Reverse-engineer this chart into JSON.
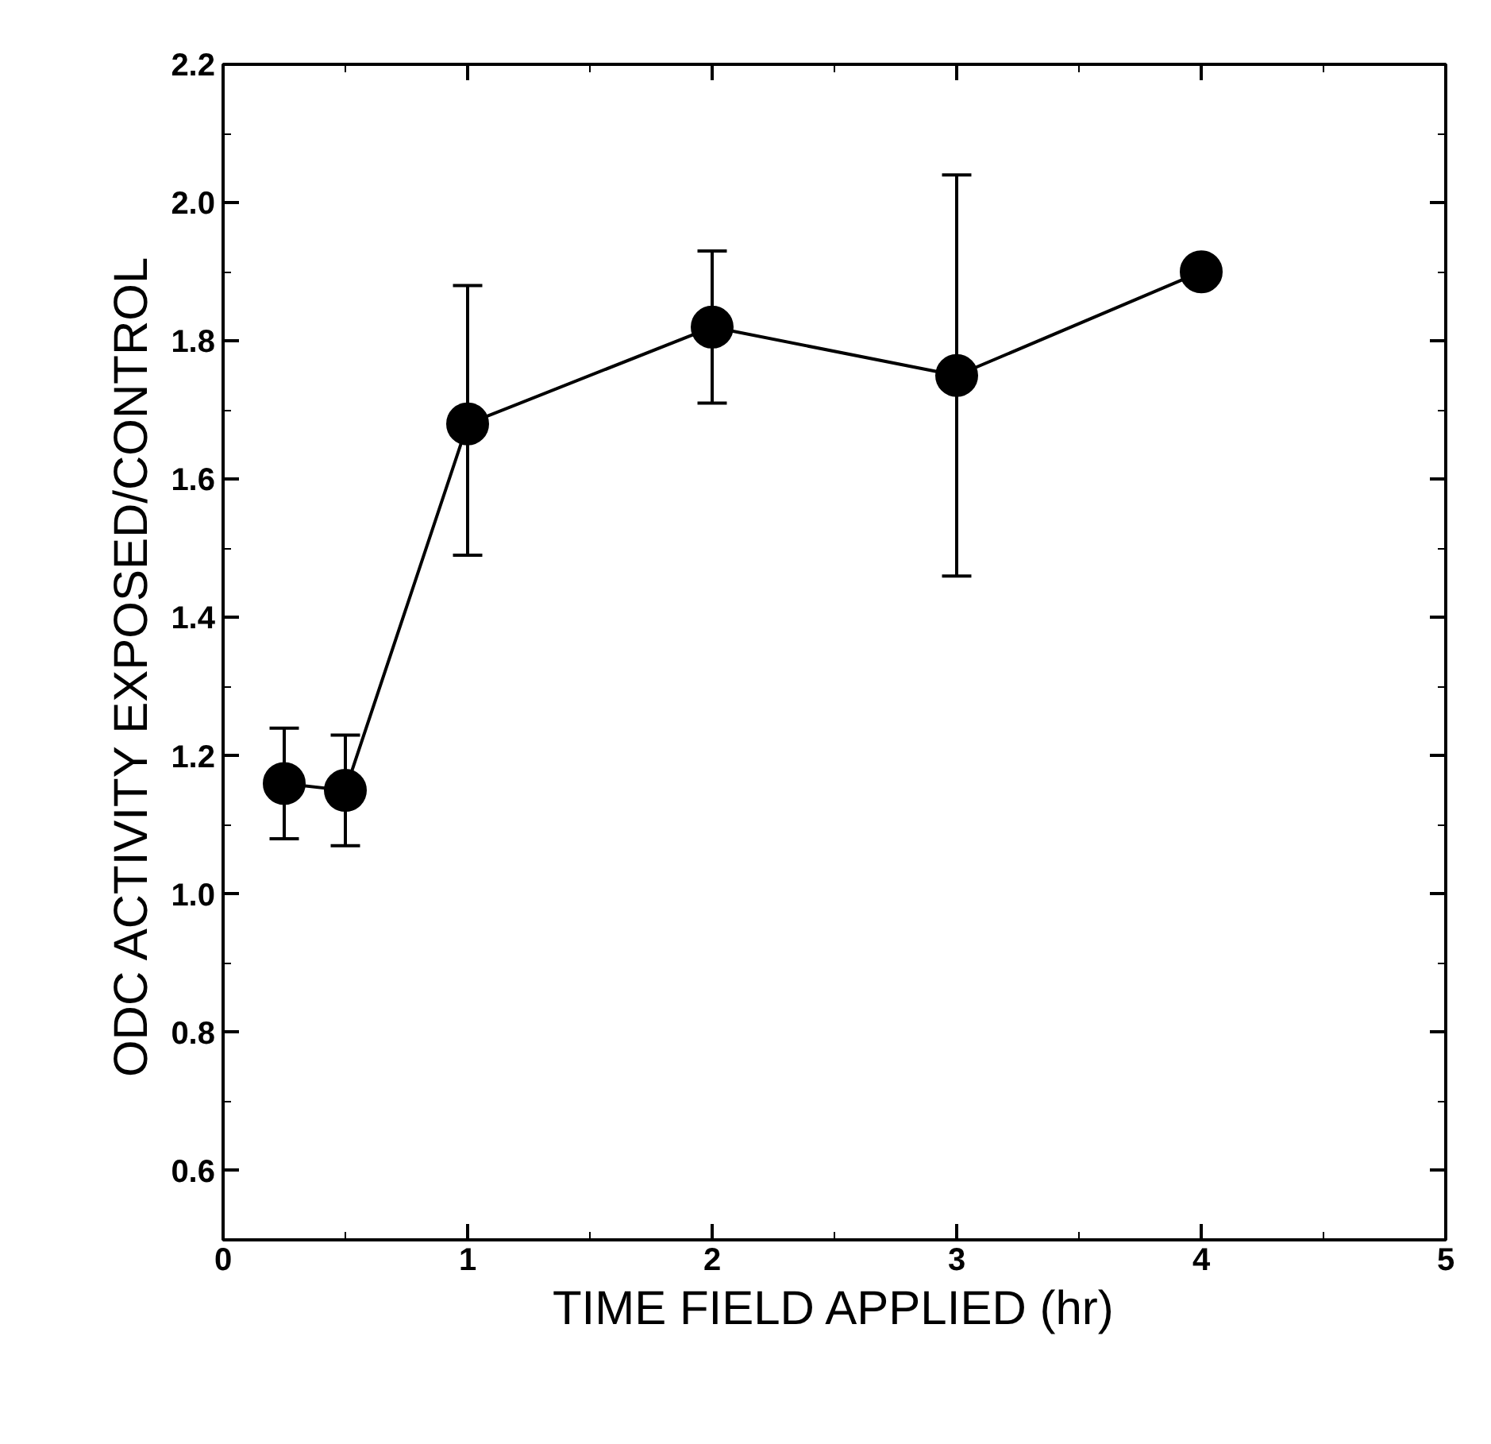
{
  "chart_data": {
    "type": "line",
    "xlabel": "TIME FIELD APPLIED (hr)",
    "ylabel": "ODC ACTIVITY   EXPOSED/CONTROL",
    "x": [
      0.25,
      0.5,
      1,
      2,
      3,
      4
    ],
    "series": [
      {
        "color": "#000000",
        "values": [
          1.16,
          1.15,
          1.68,
          1.82,
          1.75,
          1.9
        ],
        "errors": [
          [
            1.08,
            1.24
          ],
          [
            1.07,
            1.23
          ],
          [
            1.49,
            1.88
          ],
          [
            1.71,
            1.93
          ],
          [
            1.46,
            2.04
          ],
          null
        ]
      }
    ],
    "xlim": [
      0,
      5
    ],
    "ylim": [
      0.5,
      2.2
    ],
    "xticks": [
      0,
      1,
      2,
      3,
      4,
      5
    ],
    "yticks": [
      0.6,
      0.8,
      {
        "value": 1.0,
        "label": "1.0"
      },
      1.2,
      1.4,
      1.6,
      1.8,
      {
        "value": 2.0,
        "label": "2.0"
      },
      2.2
    ],
    "grid": false,
    "marker": "circle",
    "line_style": "solid"
  }
}
